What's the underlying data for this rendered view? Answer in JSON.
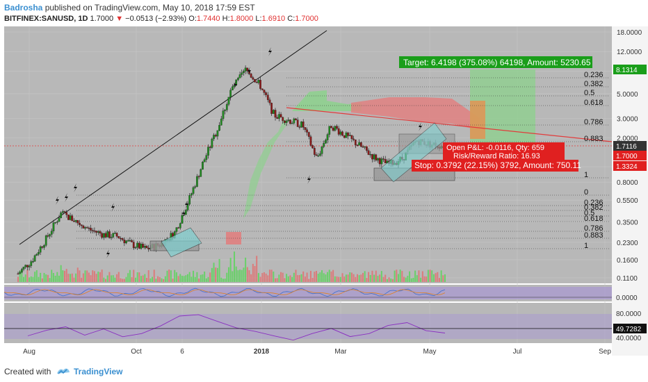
{
  "header": {
    "author": "Badrosha",
    "published_text": "published on TradingView.com, May 10, 2018 17:59 EST",
    "symbol": "BITFINEX:SANUSD, 1D",
    "last": "1.7000",
    "change": "−0.0513 (−2.93%)",
    "o_label": "O:",
    "o": "1.7440",
    "h_label": "H:",
    "h": "1.8000",
    "l_label": "L:",
    "l": "1.6910",
    "c_label": "C:",
    "c": "1.7000"
  },
  "footer": {
    "created_with": "Created with",
    "brand": "TradingView"
  },
  "colors": {
    "panel_bg": "#b8b8b8",
    "up": "#2f9e2f",
    "down": "#b02020",
    "trendline_red": "#e23b3b",
    "target_green": "#1a9e1a",
    "stop_red": "#e02020",
    "cloud_green": "#8fd08f",
    "cloud_red": "#e08080",
    "osc_fill": "#a99ad0"
  },
  "annotations": {
    "target": "Target: 6.4198 (375.08%) 64198, Amount: 5230.65",
    "pl_line1": "Open P&L: -0.0116, Qty: 659",
    "pl_line2": "Risk/Reward Ratio: 16.93",
    "stop": "Stop: 0.3792 (22.15%) 3792, Amount: 750.11"
  },
  "chart_data": [
    {
      "type": "candlestick",
      "x_tick_labels": [
        "Aug",
        "Oct",
        "6",
        "2018",
        "Mar",
        "May",
        "Jul",
        "Sep"
      ],
      "y_scale": "log",
      "y_tick_labels": [
        "18.0000",
        "12.0000",
        "8.0000",
        "5.0000",
        "3.0000",
        "2.0000",
        "1.1000",
        "0.8000",
        "0.5500",
        "0.3500",
        "0.2300",
        "0.1600",
        "0.1100"
      ],
      "price_badges": [
        {
          "value": "8.1314",
          "kind": "target"
        },
        {
          "value": "1.7116",
          "kind": "current"
        },
        {
          "value": "1.7000",
          "kind": "last"
        },
        {
          "value": "1.3324",
          "kind": "stop"
        }
      ],
      "fib_upper": [
        "0.236",
        "0.382",
        "0.5",
        "0.618",
        "0.786",
        "0.883",
        "1"
      ],
      "fib_lower": [
        "0",
        "0.236",
        "0.382",
        "0.5",
        "0.618",
        "0.786",
        "0.883",
        "1"
      ],
      "series_close_approx": [
        0.12,
        0.16,
        0.25,
        0.42,
        0.36,
        0.3,
        0.27,
        0.26,
        0.22,
        0.2,
        0.22,
        0.28,
        0.55,
        1.2,
        2.4,
        5.5,
        8.2,
        6.0,
        3.2,
        2.9,
        2.6,
        1.3,
        2.6,
        2.1,
        1.7,
        1.35,
        1.15,
        1.3,
        1.9,
        1.75,
        1.7
      ]
    },
    {
      "type": "line",
      "name": "oscillator",
      "y_tick_labels": [
        "0.0000"
      ]
    },
    {
      "type": "line",
      "name": "rsi",
      "y_tick_labels": [
        "80.0000",
        "49.7282",
        "40.0000"
      ],
      "values_approx": [
        45,
        52,
        60,
        48,
        55,
        42,
        50,
        62,
        75,
        78,
        70,
        58,
        50,
        45,
        40,
        48,
        55,
        45,
        50,
        60,
        65,
        55,
        50
      ]
    }
  ]
}
